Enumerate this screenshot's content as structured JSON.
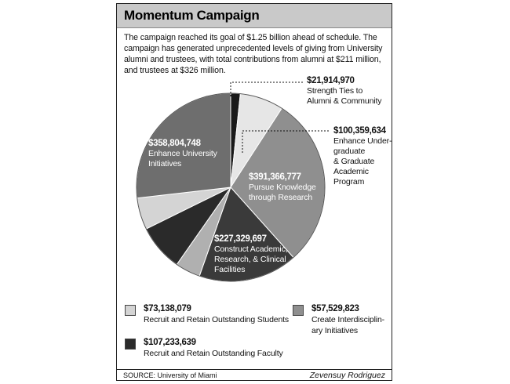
{
  "title": "Momentum Campaign",
  "intro": "The campaign reached its goal of $1.25 billion ahead of schedule. The campaign has generated unprecedented levels of giving from University alumni and trustees, with total contributions from alumni at $211 million, and trustees at $326 million.",
  "source": "SOURCE: University of Miami",
  "credit": "Zevensuy Rodriguez",
  "colors": {
    "black": "#1a1a1a",
    "dark": "#3a3a3a",
    "mid": "#6e6e6e",
    "gray": "#8f8f8f",
    "light": "#c7c7c7",
    "lighter": "#e6e6e6"
  },
  "chart_data": {
    "type": "pie",
    "title": "",
    "slices": [
      {
        "value": "$21,914,970",
        "label": "Strength Ties to\nAlumni & Community",
        "amount": 21914970,
        "color": "#1a1a1a"
      },
      {
        "value": "$100,359,634",
        "label": "Enhance Under-\ngraduate\n& Graduate\nAcademic\nProgram",
        "amount": 100359634,
        "color": "#e6e6e6"
      },
      {
        "value": "$391,366,777",
        "label": "Pursue Knowledge\nthrough Research",
        "amount": 391366777,
        "color": "#8f8f8f"
      },
      {
        "value": "$227,329,697",
        "label": "Construct Academic,\nResearch, & Clinical\nFacilities",
        "amount": 227329697,
        "color": "#3a3a3a"
      },
      {
        "value": "$57,529,823",
        "label": "Create Interdisciplin-\nary Initiatives",
        "amount": 57529823,
        "color": "#b0b0b0"
      },
      {
        "value": "$107,233,639",
        "label": "Recruit and Retain Outstanding Faculty",
        "amount": 107233639,
        "color": "#2a2a2a"
      },
      {
        "value": "$73,138,079",
        "label": "Recruit and Retain Outstanding Students",
        "amount": 73138079,
        "color": "#d4d4d4"
      },
      {
        "value": "$358,804,748",
        "label": "Enhance University\nInitiatives",
        "amount": 358804748,
        "color": "#6e6e6e"
      }
    ]
  }
}
